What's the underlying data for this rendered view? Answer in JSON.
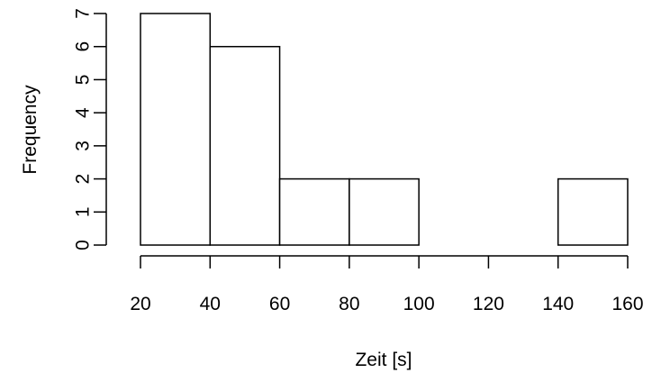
{
  "chart_data": {
    "type": "bar",
    "subtype": "histogram",
    "title": "",
    "xlabel": "Zeit [s]",
    "ylabel": "Frequency",
    "bins": [
      {
        "from": 20,
        "to": 40,
        "count": 7
      },
      {
        "from": 40,
        "to": 60,
        "count": 6
      },
      {
        "from": 60,
        "to": 80,
        "count": 2
      },
      {
        "from": 80,
        "to": 100,
        "count": 2
      },
      {
        "from": 100,
        "to": 120,
        "count": 0
      },
      {
        "from": 120,
        "to": 140,
        "count": 0
      },
      {
        "from": 140,
        "to": 160,
        "count": 2
      }
    ],
    "xlim": [
      20,
      160
    ],
    "ylim": [
      0,
      7
    ],
    "x_ticks": [
      20,
      40,
      60,
      80,
      100,
      120,
      140,
      160
    ],
    "y_ticks": [
      0,
      1,
      2,
      3,
      4,
      5,
      6,
      7
    ],
    "grid": false,
    "legend": "none",
    "colors": {
      "bar_fill": "#ffffff",
      "bar_stroke": "#000000"
    }
  }
}
